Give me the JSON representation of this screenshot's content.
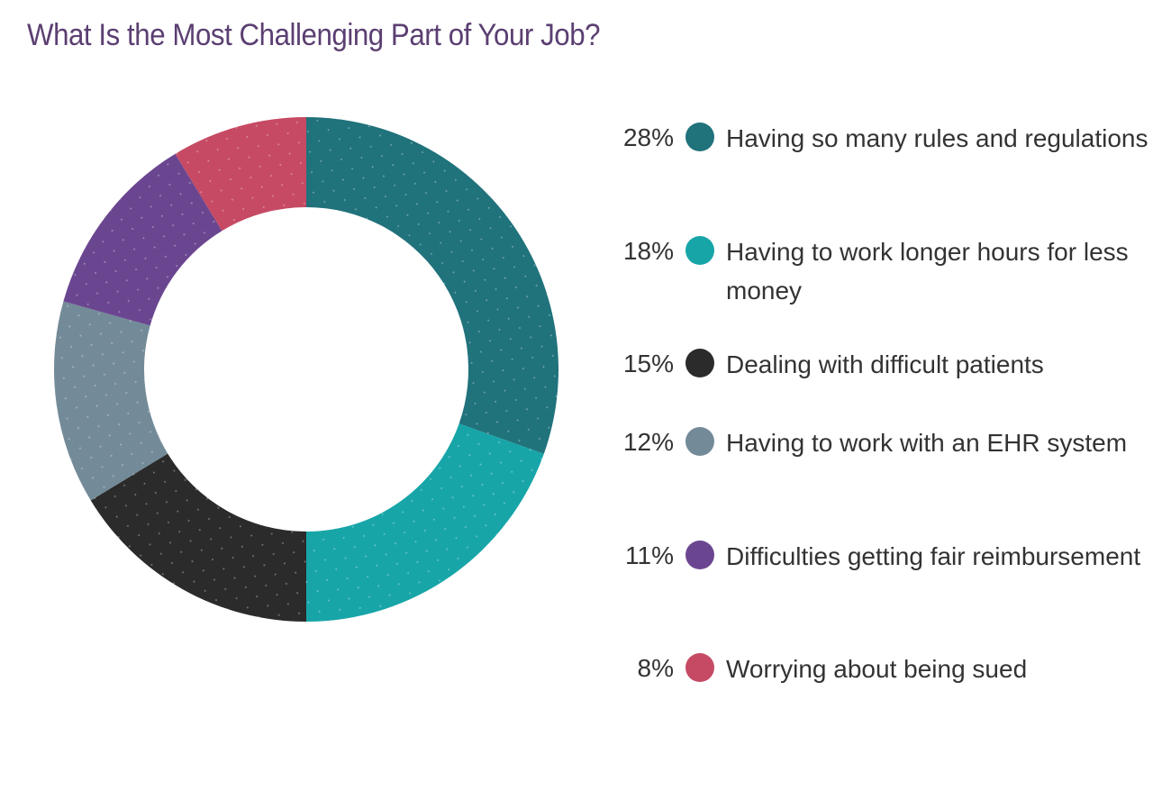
{
  "chart_data": {
    "type": "pie",
    "title": "What Is the Most Challenging Part of Your Job?",
    "slices": [
      {
        "label": "Having so many rules and regulations",
        "value": 28,
        "display": "28%",
        "color": "#20727b"
      },
      {
        "label": "Having to work longer hours for less money",
        "value": 18,
        "display": "18%",
        "color": "#17a5a8"
      },
      {
        "label": "Dealing with difficult patients",
        "value": 15,
        "display": "15%",
        "color": "#2b2b2b"
      },
      {
        "label": "Having to work with an EHR system",
        "value": 12,
        "display": "12%",
        "color": "#738b98"
      },
      {
        "label": "Difficulties getting fair reimbursement",
        "value": 11,
        "display": "11%",
        "color": "#6b4690"
      },
      {
        "label": "Worrying about being sued",
        "value": 8,
        "display": "8%",
        "color": "#c64a64"
      }
    ],
    "legend_position": "right"
  }
}
